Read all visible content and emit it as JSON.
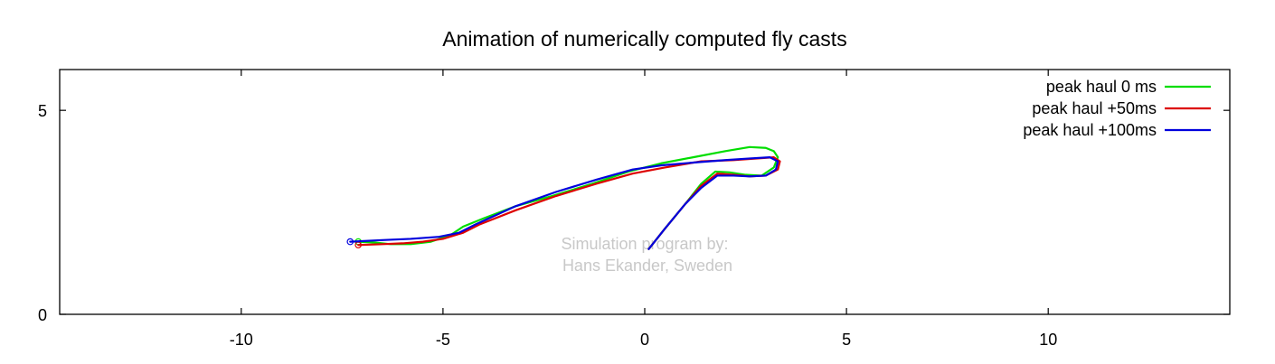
{
  "chart_data": {
    "type": "line",
    "title": "Animation of numerically computed fly casts",
    "xlabel": "",
    "ylabel": "",
    "xlim": [
      -14.5,
      14.5
    ],
    "ylim": [
      0,
      6
    ],
    "x_ticks": [
      -10,
      -5,
      0,
      5,
      10
    ],
    "y_ticks": [
      0,
      5
    ],
    "grid": false,
    "legend_position": "top-right",
    "watermark": [
      "Simulation program by:",
      "Hans Ekander, Sweden"
    ],
    "series": [
      {
        "name": "peak haul 0 ms",
        "color": "#00dd00",
        "x": [
          0.1,
          0.5,
          1.0,
          1.4,
          1.75,
          2.1,
          2.5,
          2.9,
          3.2,
          3.3,
          3.2,
          3.0,
          2.6,
          2.0,
          1.2,
          0.4,
          -0.4,
          -1.3,
          -2.3,
          -3.2,
          -4.0,
          -4.5,
          -4.8,
          -5.3,
          -5.8,
          -6.3,
          -6.7,
          -7.1
        ],
        "y": [
          1.6,
          2.1,
          2.7,
          3.2,
          3.5,
          3.48,
          3.42,
          3.4,
          3.6,
          3.85,
          4.0,
          4.08,
          4.1,
          4.0,
          3.85,
          3.7,
          3.5,
          3.2,
          2.9,
          2.65,
          2.35,
          2.15,
          1.95,
          1.78,
          1.72,
          1.72,
          1.76,
          1.78
        ]
      },
      {
        "name": "peak haul +50ms",
        "color": "#dd0000",
        "x": [
          0.1,
          0.5,
          1.0,
          1.4,
          1.8,
          2.2,
          2.6,
          3.0,
          3.3,
          3.35,
          3.2,
          2.8,
          2.2,
          1.4,
          0.5,
          -0.3,
          -1.2,
          -2.2,
          -3.2,
          -4.1,
          -4.5,
          -5.0,
          -5.5,
          -6.0,
          -6.5,
          -7.1
        ],
        "y": [
          1.6,
          2.1,
          2.7,
          3.15,
          3.45,
          3.42,
          3.38,
          3.4,
          3.55,
          3.75,
          3.85,
          3.82,
          3.78,
          3.75,
          3.6,
          3.45,
          3.2,
          2.9,
          2.55,
          2.2,
          2.0,
          1.85,
          1.78,
          1.74,
          1.72,
          1.7
        ]
      },
      {
        "name": "peak haul +100ms",
        "color": "#0000dd",
        "x": [
          0.1,
          0.5,
          1.0,
          1.4,
          1.8,
          2.2,
          2.6,
          3.0,
          3.25,
          3.3,
          3.1,
          2.6,
          2.0,
          1.2,
          0.4,
          -0.3,
          -1.2,
          -2.2,
          -3.2,
          -4.2,
          -4.6,
          -5.1,
          -5.8,
          -6.5,
          -7.3
        ],
        "y": [
          1.6,
          2.1,
          2.7,
          3.1,
          3.4,
          3.4,
          3.38,
          3.4,
          3.55,
          3.75,
          3.85,
          3.82,
          3.78,
          3.72,
          3.65,
          3.55,
          3.3,
          3.0,
          2.65,
          2.2,
          2.0,
          1.9,
          1.85,
          1.82,
          1.78
        ]
      }
    ]
  }
}
